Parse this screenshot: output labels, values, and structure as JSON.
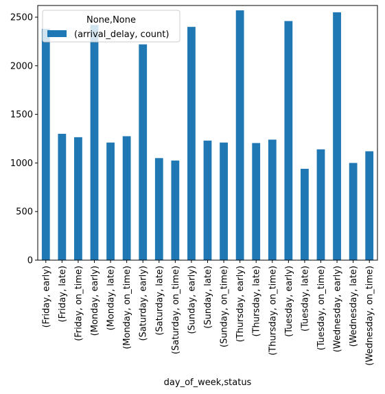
{
  "chart_data": {
    "type": "bar",
    "xlabel": "day_of_week,status",
    "ylabel": "",
    "ylim": [
      0,
      2620
    ],
    "yticks": [
      0,
      500,
      1000,
      1500,
      2000,
      2500
    ],
    "grid": false,
    "legend": {
      "title": "None,None",
      "placement": "top-left"
    },
    "colors": {
      "bar": "#1f77b4",
      "axis": "#000000",
      "legend_border": "#cccccc"
    },
    "categories": [
      "(Friday, early)",
      "(Friday, late)",
      "(Friday, on_time)",
      "(Monday, early)",
      "(Monday, late)",
      "(Monday, on_time)",
      "(Saturday, early)",
      "(Saturday, late)",
      "(Saturday, on_time)",
      "(Sunday, early)",
      "(Sunday, late)",
      "(Sunday, on_time)",
      "(Thursday, early)",
      "(Thursday, late)",
      "(Thursday, on_time)",
      "(Tuesday, early)",
      "(Tuesday, late)",
      "(Tuesday, on_time)",
      "(Wednesday, early)",
      "(Wednesday, late)",
      "(Wednesday, on_time)"
    ],
    "series": [
      {
        "name": "(arrival_delay, count)",
        "values": [
          2380,
          1300,
          1265,
          2420,
          1210,
          1275,
          2220,
          1050,
          1025,
          2400,
          1230,
          1210,
          2570,
          1205,
          1240,
          2460,
          940,
          1140,
          2550,
          1000,
          1120
        ]
      }
    ]
  }
}
